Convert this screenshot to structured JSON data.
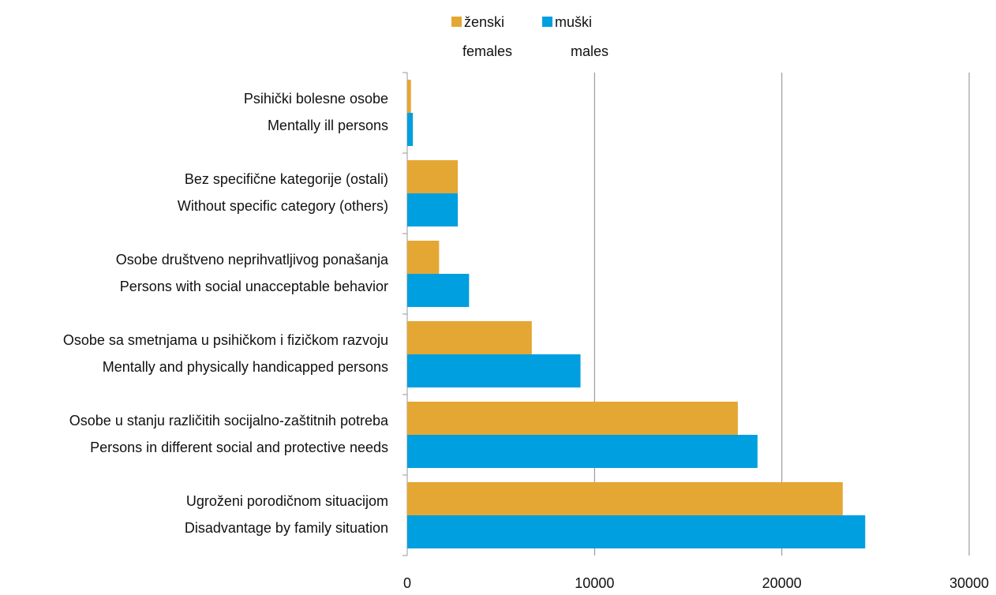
{
  "chart_data": {
    "type": "barh",
    "categories": [
      [
        "Psihički bolesne osobe",
        "Mentally ill persons"
      ],
      [
        "Bez specifične kategorije (ostali)",
        "Without specific category (others)"
      ],
      [
        "Osobe društveno neprihvatljivog ponašanja",
        "Persons with social unacceptable behavior"
      ],
      [
        "Osobe sa smetnjama u psihičkom i fizičkom razvoju",
        "Mentally and physically handicapped persons"
      ],
      [
        "Osobe u stanju različitih socijalno-zaštitnih potreba",
        "Persons in different social and protective needs"
      ],
      [
        "Ugroženi porodičnom situacijom",
        "Disadvantage by family situation"
      ]
    ],
    "series": [
      {
        "name": [
          "ženski",
          "females"
        ],
        "color": "#E5A733",
        "values": [
          200,
          2700,
          1700,
          6650,
          17650,
          23250
        ]
      },
      {
        "name": [
          "muški",
          "males"
        ],
        "color": "#009FDF",
        "values": [
          300,
          2700,
          3300,
          9250,
          18700,
          24450
        ]
      }
    ],
    "xlim": [
      0,
      30000
    ],
    "xticks": [
      0,
      10000,
      20000,
      30000
    ],
    "grid": true,
    "legend": "top"
  }
}
